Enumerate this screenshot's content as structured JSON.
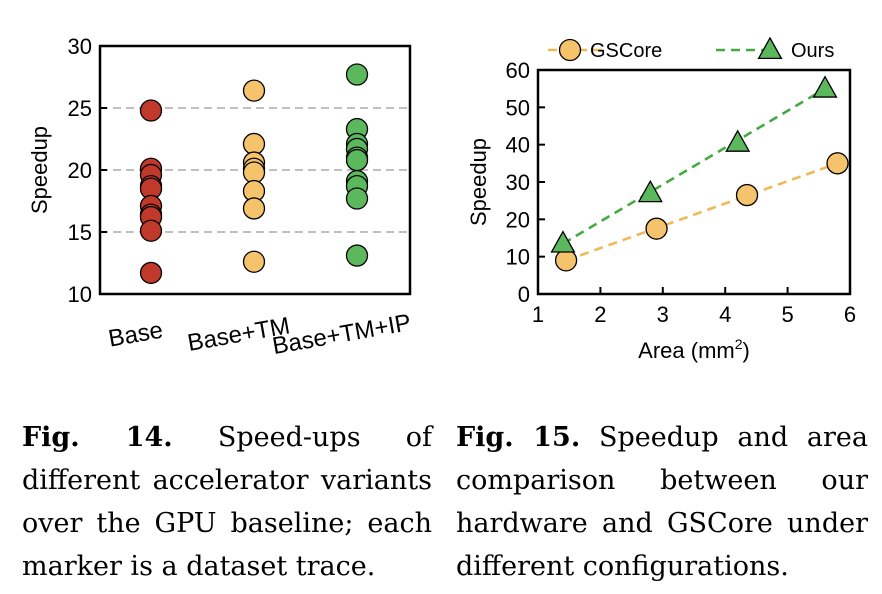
{
  "chart_data": [
    {
      "type": "scatter",
      "ylabel": "Speedup",
      "xlabel": "",
      "ylim": [
        10,
        30
      ],
      "yticks": [
        10,
        15,
        20,
        25,
        30
      ],
      "grid": "horizontal dashed",
      "categories": [
        "Base",
        "Base+TM",
        "Base+TM+IP"
      ],
      "series": [
        {
          "category": "Base",
          "color": "#c0392b",
          "values": [
            24.8,
            20.1,
            19.6,
            18.7,
            18.5,
            17.1,
            16.4,
            16.2,
            15.1,
            11.7
          ]
        },
        {
          "category": "Base+TM",
          "color": "#f5c36b",
          "values": [
            26.4,
            22.1,
            20.6,
            20.1,
            19.8,
            18.3,
            16.9,
            12.6
          ]
        },
        {
          "category": "Base+TM+IP",
          "color": "#5cb85c",
          "values": [
            27.7,
            23.3,
            22.1,
            21.7,
            21.0,
            20.8,
            19.1,
            18.7,
            17.7,
            13.1
          ]
        }
      ]
    },
    {
      "type": "line",
      "xlabel": "Area (mm",
      "xlabel_sup": "2",
      "xlabel_close": ")",
      "ylabel": "Speedup",
      "xlim": [
        1,
        6
      ],
      "ylim": [
        0,
        60
      ],
      "xticks": [
        1,
        2,
        3,
        4,
        5,
        6
      ],
      "yticks": [
        0,
        10,
        20,
        30,
        40,
        50,
        60
      ],
      "legend": "top",
      "series": [
        {
          "name": "GSCore",
          "marker": "circle",
          "color": "#f5c36b",
          "line_color": "#f0b955",
          "x": [
            1.45,
            2.9,
            4.35,
            5.8
          ],
          "y": [
            9,
            17.5,
            26.5,
            35
          ]
        },
        {
          "name": "Ours",
          "marker": "triangle",
          "color": "#5cb85c",
          "line_color": "#44aa44",
          "x": [
            1.4,
            2.8,
            4.2,
            5.6
          ],
          "y": [
            13.5,
            27,
            40.5,
            55
          ]
        }
      ]
    }
  ],
  "captions": [
    {
      "label": "Fig. 14.",
      "text": "Speed-ups of different accelerator variants over the GPU baseline; each marker is a dataset trace."
    },
    {
      "label": "Fig. 15.",
      "text": "Speedup and area comparison between our hardware and GSCore under different configurations."
    }
  ]
}
